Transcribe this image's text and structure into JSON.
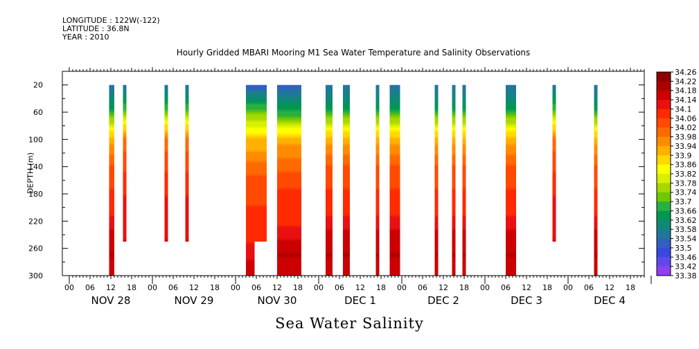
{
  "header": {
    "longitude": "LONGITUDE : 122W(-122)",
    "latitude": "LATITUDE : 36.8N",
    "year": "YEAR : 2010"
  },
  "chart_data": {
    "type": "heatmap",
    "title": "Hourly Gridded MBARI Mooring M1 Sea Water Temperature and Salinity Observations",
    "variable_label": "Sea Water Salinity",
    "ylabel": "DEPTH (m)",
    "y_reversed": true,
    "ylim": [
      0,
      300
    ],
    "y_ticks": [
      20,
      60,
      100,
      140,
      180,
      220,
      260,
      300
    ],
    "x_hour_ticks": [
      "00",
      "06",
      "12",
      "18",
      "00",
      "06",
      "12",
      "18",
      "00",
      "06",
      "12",
      "18",
      "00",
      "06",
      "12",
      "18",
      "00",
      "06",
      "12",
      "18",
      "00",
      "06",
      "12",
      "18",
      "00",
      "06",
      "12",
      "18"
    ],
    "x_day_labels": [
      "NOV 28",
      "NOV 29",
      "NOV 30",
      "DEC  1",
      "DEC  2",
      "DEC  3",
      "DEC  4"
    ],
    "xlim_hours": [
      -2,
      166
    ],
    "colorbar_levels": [
      34.26,
      34.22,
      34.18,
      34.14,
      34.1,
      34.06,
      34.02,
      33.98,
      33.94,
      33.9,
      33.86,
      33.82,
      33.78,
      33.74,
      33.7,
      33.66,
      33.62,
      33.58,
      33.54,
      33.5,
      33.46,
      33.42,
      33.38
    ],
    "colorbar_colors": [
      "#8b0000",
      "#aa0000",
      "#cc0000",
      "#e81010",
      "#ff2a00",
      "#ff4a00",
      "#ff6a00",
      "#ff8c00",
      "#ffb000",
      "#ffd800",
      "#ffff00",
      "#d8f000",
      "#a8d800",
      "#70c800",
      "#2ab040",
      "#009850",
      "#108878",
      "#207898",
      "#3060c0",
      "#3848e0",
      "#6048f0",
      "#9040f0",
      "#c828f8"
    ],
    "data_profiles": [
      {
        "depths": [
          20,
          50,
          100,
          150,
          200,
          240,
          270,
          300
        ],
        "values": [
          33.54,
          33.62,
          33.92,
          34.05,
          34.07,
          34.16,
          34.18,
          34.14
        ]
      },
      {
        "depths": [
          20,
          50,
          100,
          150,
          200,
          250
        ],
        "values": [
          33.56,
          33.66,
          34.0,
          34.06,
          34.12,
          34.14
        ]
      },
      {
        "depths": [
          20,
          60,
          100,
          160,
          240,
          280,
          300
        ],
        "values": [
          33.5,
          33.72,
          33.9,
          34.04,
          34.08,
          34.14,
          34.16
        ]
      },
      {
        "depths": [
          20,
          60,
          100,
          160,
          230,
          270,
          300
        ],
        "values": [
          33.5,
          33.66,
          33.92,
          34.05,
          34.1,
          34.18,
          34.16
        ]
      }
    ],
    "columns": [
      {
        "start": 11.5,
        "end": 13,
        "top": 20,
        "bottom": 300,
        "profile": 0
      },
      {
        "start": 15.5,
        "end": 16.5,
        "top": 20,
        "bottom": 250,
        "profile": 1
      },
      {
        "start": 27.5,
        "end": 28.5,
        "top": 20,
        "bottom": 250,
        "profile": 1
      },
      {
        "start": 33.5,
        "end": 34.5,
        "top": 20,
        "bottom": 250,
        "profile": 1
      },
      {
        "start": 51,
        "end": 53.5,
        "top": 20,
        "bottom": 300,
        "profile": 2
      },
      {
        "start": 53.5,
        "end": 57,
        "top": 20,
        "bottom": 250,
        "profile": 2
      },
      {
        "start": 60,
        "end": 67,
        "top": 20,
        "bottom": 300,
        "profile": 3
      },
      {
        "start": 74,
        "end": 76,
        "top": 20,
        "bottom": 300,
        "profile": 0
      },
      {
        "start": 79,
        "end": 81,
        "top": 20,
        "bottom": 300,
        "profile": 0
      },
      {
        "start": 88.5,
        "end": 89.5,
        "top": 20,
        "bottom": 300,
        "profile": 0
      },
      {
        "start": 92.5,
        "end": 95.5,
        "top": 20,
        "bottom": 300,
        "profile": 0
      },
      {
        "start": 105.5,
        "end": 106.5,
        "top": 20,
        "bottom": 300,
        "profile": 0
      },
      {
        "start": 110.5,
        "end": 111.5,
        "top": 20,
        "bottom": 300,
        "profile": 0
      },
      {
        "start": 113.5,
        "end": 114.5,
        "top": 20,
        "bottom": 300,
        "profile": 0
      },
      {
        "start": 126,
        "end": 129,
        "top": 20,
        "bottom": 300,
        "profile": 0
      },
      {
        "start": 139.5,
        "end": 140.5,
        "top": 20,
        "bottom": 250,
        "profile": 1
      },
      {
        "start": 151.5,
        "end": 152.5,
        "top": 20,
        "bottom": 300,
        "profile": 0
      }
    ]
  }
}
